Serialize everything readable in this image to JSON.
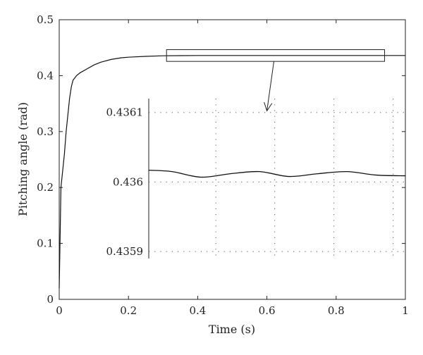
{
  "chart_data": [
    {
      "type": "line",
      "role": "main",
      "xlabel": "Time (s)",
      "ylabel": "Pitching angle (rad)",
      "xlim": [
        0,
        1
      ],
      "ylim": [
        0,
        0.5
      ],
      "xticks": [
        0,
        0.2,
        0.4,
        0.6,
        0.8,
        1
      ],
      "yticks": [
        0,
        0.1,
        0.2,
        0.3,
        0.4,
        0.5
      ],
      "xtick_labels": [
        "0",
        "0.2",
        "0.4",
        "0.6",
        "0.8",
        "1"
      ],
      "ytick_labels": [
        "0",
        "0.1",
        "0.2",
        "0.3",
        "0.4",
        "0.5"
      ],
      "grid": false,
      "series": [
        {
          "x": [
            0,
            0.005,
            0.01,
            0.015,
            0.02,
            0.025,
            0.03,
            0.035,
            0.04,
            0.045,
            0.05,
            0.06,
            0.08,
            0.1,
            0.12,
            0.15,
            0.18,
            0.2,
            0.25,
            0.3,
            0.4,
            0.5,
            0.6,
            0.8,
            1.0
          ],
          "y": [
            0.02,
            0.2,
            0.23,
            0.26,
            0.3,
            0.33,
            0.36,
            0.38,
            0.392,
            0.396,
            0.4,
            0.405,
            0.412,
            0.419,
            0.424,
            0.429,
            0.432,
            0.433,
            0.4345,
            0.4355,
            0.436,
            0.436,
            0.436,
            0.436,
            0.436
          ],
          "color": "#111111"
        }
      ],
      "annotations": [
        {
          "type": "zoom-box",
          "x_range": [
            0.31,
            0.94
          ],
          "y_range": [
            0.4255,
            0.4465
          ]
        },
        {
          "type": "arrow",
          "from": [
            0.62,
            0.425
          ],
          "to": [
            0.6,
            0.337
          ]
        }
      ]
    },
    {
      "type": "line",
      "role": "inset",
      "xlim": [
        0.12,
        1.0
      ],
      "ylim": [
        0.43589,
        0.43612
      ],
      "xticks": [
        0.35,
        0.552,
        0.755,
        0.958
      ],
      "yticks": [
        0.4359,
        0.436,
        0.4361
      ],
      "ytick_labels": [
        "0.4359",
        "0.436",
        "0.4361"
      ],
      "grid": true,
      "series": [
        {
          "x": [
            0.12,
            0.2,
            0.3,
            0.4,
            0.5,
            0.6,
            0.7,
            0.8,
            0.9,
            1.0
          ],
          "y": [
            0.436017,
            0.436015,
            0.436007,
            0.436012,
            0.436015,
            0.436008,
            0.436012,
            0.436015,
            0.43601,
            0.436009
          ],
          "color": "#111111"
        }
      ]
    }
  ]
}
